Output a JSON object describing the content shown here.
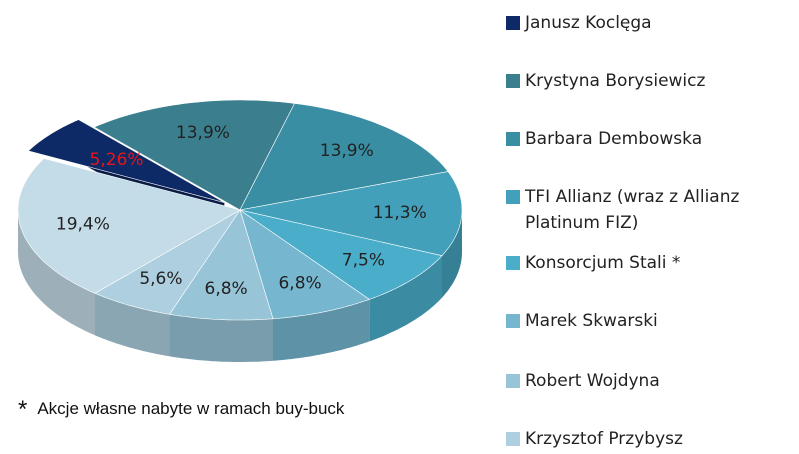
{
  "chart_data": {
    "type": "pie",
    "categories": [
      "Janusz Koclęga",
      "Krystyna Borysiewicz",
      "Barbara Dembowska",
      "TFI Allianz (wraz z Allianz Platinum FIZ)",
      "Konsorcjum Stali *",
      "Marek Skwarski",
      "Robert Wojdyna",
      "Krzysztof Przybysz",
      null
    ],
    "values": [
      5.26,
      13.9,
      13.9,
      11.3,
      7.5,
      6.8,
      6.8,
      5.6,
      19.4
    ],
    "value_labels": [
      "5,26%",
      "13,9%",
      "13,9%",
      "11,3%",
      "7,5%",
      "6,8%",
      "6,8%",
      "5,6%",
      "19,4%"
    ],
    "colors": [
      "#0d2a66",
      "#3b7f8e",
      "#3a8ea3",
      "#42a0ba",
      "#4aaecb",
      "#76b7cf",
      "#97c4d7",
      "#adcfdf",
      "#c4dce7"
    ],
    "label_colors": [
      "#e8141b",
      "#222222",
      "#222222",
      "#222222",
      "#222222",
      "#222222",
      "#222222",
      "#222222",
      "#222222"
    ],
    "footnote_mark": "*",
    "footnote": "Akcje własne nabyte w ramach buy-buck"
  }
}
